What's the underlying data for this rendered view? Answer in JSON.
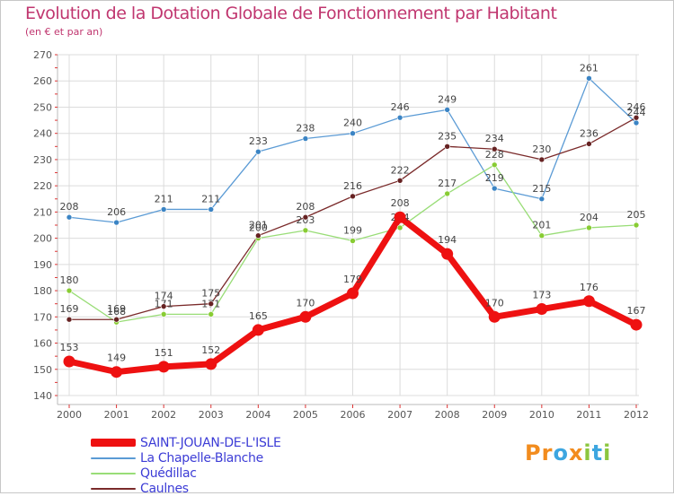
{
  "header": {
    "title": "Evolution de la Dotation Globale de Fonctionnement par Habitant",
    "subtitle": "(en € et par an)"
  },
  "logo": {
    "letters": [
      {
        "char": "P",
        "color": "#f28c1e"
      },
      {
        "char": "r",
        "color": "#f28c1e"
      },
      {
        "char": "o",
        "color": "#3da6e0"
      },
      {
        "char": "x",
        "color": "#f28c1e"
      },
      {
        "char": "i",
        "color": "#8cc63f"
      },
      {
        "char": "t",
        "color": "#3da6e0"
      },
      {
        "char": "i",
        "color": "#8cc63f"
      }
    ]
  },
  "chart_data": {
    "type": "line",
    "title": "Evolution de la Dotation Globale de Fonctionnement par Habitant",
    "subtitle": "(en € et par an)",
    "xlabel": "",
    "ylabel": "",
    "categories": [
      "2000",
      "2001",
      "2002",
      "2003",
      "2004",
      "2005",
      "2006",
      "2007",
      "2008",
      "2009",
      "2010",
      "2011",
      "2012"
    ],
    "ylim": [
      140,
      270
    ],
    "yticks": [
      140,
      150,
      160,
      170,
      180,
      190,
      200,
      210,
      220,
      230,
      240,
      250,
      260,
      270
    ],
    "grid": true,
    "legend_position": "bottom-left",
    "series": [
      {
        "name": "La Chapelle-Blanche",
        "color": "#5b9bd5",
        "dot": "#3b84c4",
        "width": 1.3,
        "values": [
          208,
          206,
          211,
          211,
          233,
          238,
          240,
          246,
          249,
          219,
          215,
          261,
          244
        ]
      },
      {
        "name": "Quédillac",
        "color": "#99dd77",
        "dot": "#88cc33",
        "width": 1.3,
        "values": [
          180,
          168,
          171,
          171,
          200,
          203,
          199,
          204,
          217,
          228,
          201,
          204,
          205
        ]
      },
      {
        "name": "Caulnes",
        "color": "#7a2a2a",
        "dot": "#662222",
        "width": 1.3,
        "values": [
          169,
          169,
          174,
          175,
          201,
          208,
          216,
          222,
          235,
          234,
          230,
          236,
          246
        ]
      },
      {
        "name": "SAINT-JOUAN-DE-L'ISLE",
        "color": "#ee1111",
        "dot": "#ee1111",
        "width": 7,
        "values": [
          153,
          149,
          151,
          152,
          165,
          170,
          179,
          208,
          194,
          170,
          173,
          176,
          167
        ]
      }
    ]
  }
}
